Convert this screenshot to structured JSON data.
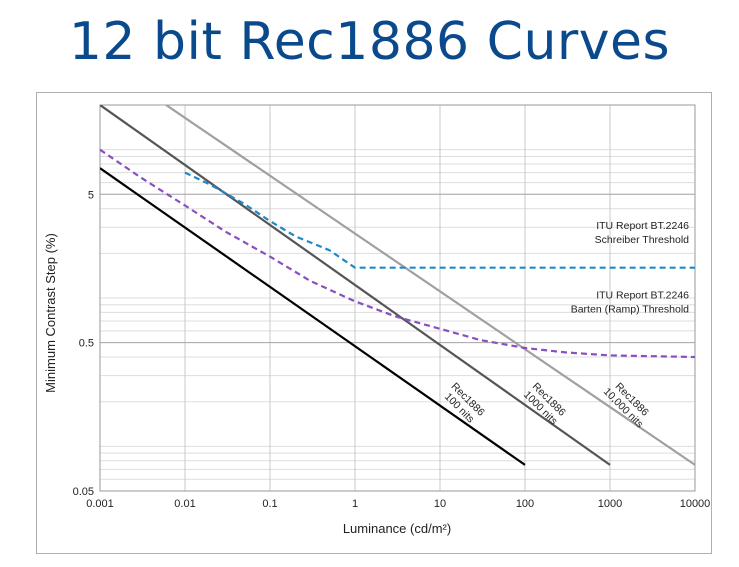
{
  "title": "12 bit Rec1886 Curves",
  "chart_data": {
    "type": "line",
    "xlabel": "Luminance (cd/m²)",
    "ylabel": "Minimum Contrast Step (%)",
    "x_scale": "log",
    "y_scale": "log",
    "xlim": [
      0.001,
      10000
    ],
    "ylim": [
      0.05,
      20
    ],
    "grid": true,
    "x_ticks": [
      "0.001",
      "0.01",
      "0.1",
      "1",
      "10",
      "100",
      "1000",
      "10000"
    ],
    "x_tick_values": [
      0.001,
      0.01,
      0.1,
      1,
      10,
      100,
      1000,
      10000
    ],
    "y_ticks": [
      "0.05",
      "0.5",
      "5"
    ],
    "y_tick_values": [
      0.05,
      0.5,
      5
    ],
    "series": [
      {
        "color": "#000000",
        "style": "solid",
        "x": [
          0.001,
          100
        ],
        "y": [
          7.5,
          0.075
        ],
        "label_lines": [
          "Rec1886",
          "100 nits"
        ],
        "label_at": [
          20,
          0.2
        ]
      },
      {
        "color": "#555555",
        "style": "solid",
        "x": [
          0.001,
          1000
        ],
        "y": [
          20,
          0.075
        ],
        "label_lines": [
          "Rec1886",
          "1000 nits"
        ],
        "label_at": [
          180,
          0.2
        ]
      },
      {
        "color": "#a0a0a0",
        "style": "solid",
        "x": [
          0.006,
          10000
        ],
        "y": [
          20,
          0.075
        ],
        "label_lines": [
          "Rec1886",
          "10,000 nits"
        ],
        "label_at": [
          1700,
          0.2
        ]
      },
      {
        "color": "#1e88c8",
        "style": "dashed",
        "x": [
          0.01,
          0.02,
          0.05,
          0.1,
          0.2,
          0.5,
          1,
          10,
          100,
          1000,
          10000
        ],
        "y": [
          7.0,
          5.8,
          4.3,
          3.3,
          2.6,
          2.1,
          1.6,
          1.6,
          1.6,
          1.6,
          1.6
        ],
        "label_lines": [
          "ITU Report BT.2246",
          "Schreiber Threshold"
        ],
        "label_at": [
          10000,
          2.5
        ]
      },
      {
        "color": "#8a4fc0",
        "style": "dashed",
        "x": [
          0.001,
          0.003,
          0.01,
          0.03,
          0.1,
          0.3,
          1,
          3,
          10,
          30,
          100,
          300,
          1000,
          10000
        ],
        "y": [
          10,
          6.5,
          4.2,
          2.8,
          1.9,
          1.3,
          0.95,
          0.75,
          0.62,
          0.52,
          0.46,
          0.43,
          0.41,
          0.4
        ],
        "label_lines": [
          "ITU Report BT.2246",
          "Barten (Ramp) Threshold"
        ],
        "label_at": [
          10000,
          0.85
        ]
      }
    ]
  }
}
